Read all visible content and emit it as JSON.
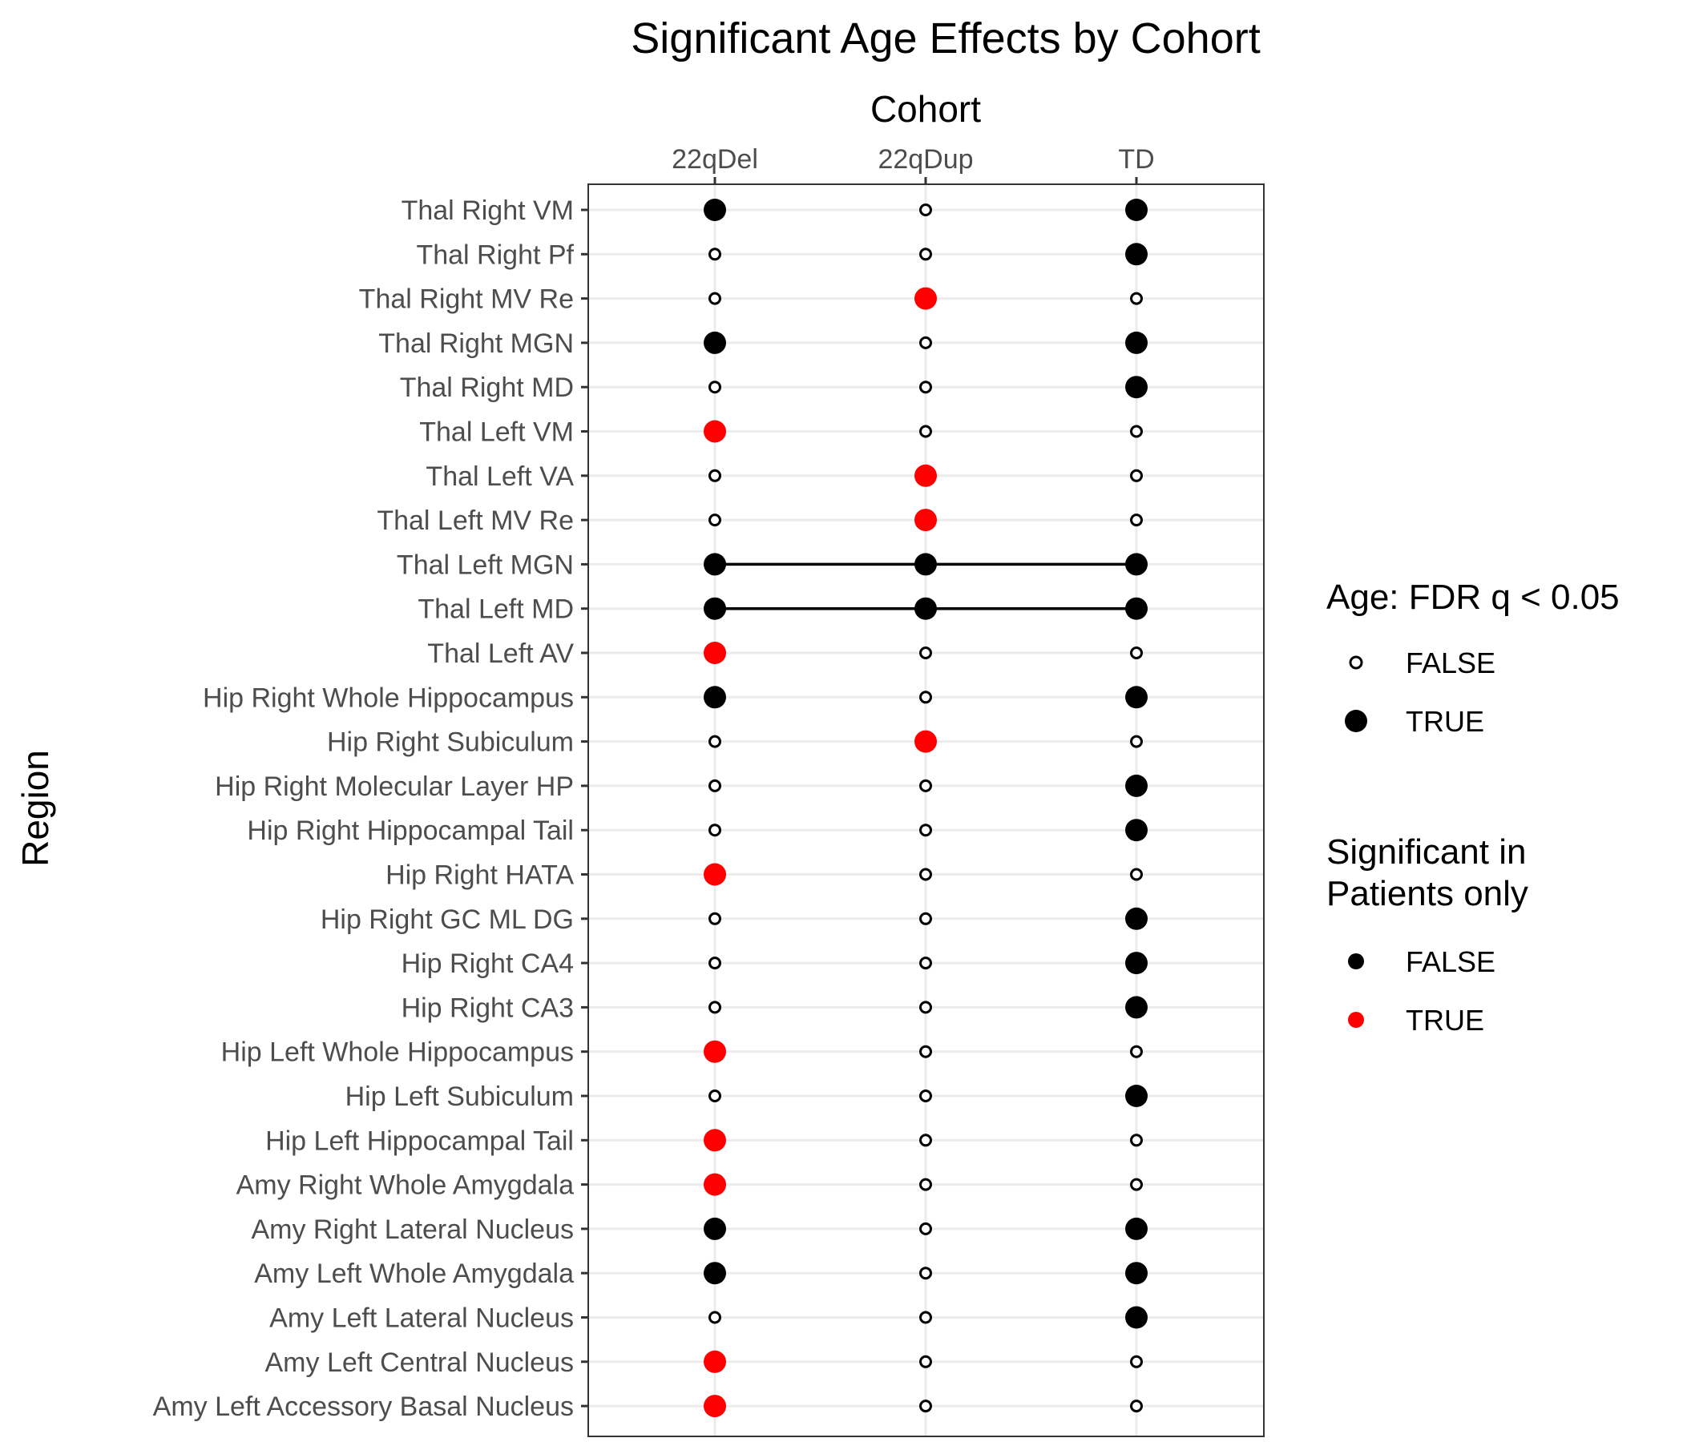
{
  "chart_data": {
    "type": "scatter",
    "title": "Significant Age Effects by Cohort",
    "xlabel": "Cohort",
    "ylabel": "Region",
    "x_axis_position": "top",
    "grid": true,
    "cohorts": [
      "22qDel",
      "22qDup",
      "TD"
    ],
    "regions": [
      "Thal Right VM",
      "Thal Right Pf",
      "Thal Right MV Re",
      "Thal Right MGN",
      "Thal Right MD",
      "Thal Left VM",
      "Thal Left VA",
      "Thal Left MV Re",
      "Thal Left MGN",
      "Thal Left MD",
      "Thal Left AV",
      "Hip Right Whole Hippocampus",
      "Hip Right Subiculum",
      "Hip Right Molecular Layer HP",
      "Hip Right Hippocampal Tail",
      "Hip Right HATA",
      "Hip Right GC ML DG",
      "Hip Right CA4",
      "Hip Right CA3",
      "Hip Left Whole Hippocampus",
      "Hip Left Subiculum",
      "Hip Left Hippocampal Tail",
      "Amy Right Whole Amygdala",
      "Amy Right Lateral Nucleus",
      "Amy Left Whole Amygdala",
      "Amy Left Lateral Nucleus",
      "Amy Left Central Nucleus",
      "Amy Left Accessory Basal Nucleus"
    ],
    "significant": [
      [
        true,
        false,
        true
      ],
      [
        false,
        false,
        true
      ],
      [
        false,
        true,
        false
      ],
      [
        true,
        false,
        true
      ],
      [
        false,
        false,
        true
      ],
      [
        true,
        false,
        false
      ],
      [
        false,
        true,
        false
      ],
      [
        false,
        true,
        false
      ],
      [
        true,
        true,
        true
      ],
      [
        true,
        true,
        true
      ],
      [
        true,
        false,
        false
      ],
      [
        true,
        false,
        true
      ],
      [
        false,
        true,
        false
      ],
      [
        false,
        false,
        true
      ],
      [
        false,
        false,
        true
      ],
      [
        true,
        false,
        false
      ],
      [
        false,
        false,
        true
      ],
      [
        false,
        false,
        true
      ],
      [
        false,
        false,
        true
      ],
      [
        true,
        false,
        false
      ],
      [
        false,
        false,
        true
      ],
      [
        true,
        false,
        false
      ],
      [
        true,
        false,
        false
      ],
      [
        true,
        false,
        true
      ],
      [
        true,
        false,
        true
      ],
      [
        false,
        false,
        true
      ],
      [
        true,
        false,
        false
      ],
      [
        true,
        false,
        false
      ]
    ],
    "patients_only": [
      [
        false,
        false,
        false
      ],
      [
        false,
        false,
        false
      ],
      [
        false,
        true,
        false
      ],
      [
        false,
        false,
        false
      ],
      [
        false,
        false,
        false
      ],
      [
        true,
        false,
        false
      ],
      [
        false,
        true,
        false
      ],
      [
        false,
        true,
        false
      ],
      [
        false,
        false,
        false
      ],
      [
        false,
        false,
        false
      ],
      [
        true,
        false,
        false
      ],
      [
        false,
        false,
        false
      ],
      [
        false,
        true,
        false
      ],
      [
        false,
        false,
        false
      ],
      [
        false,
        false,
        false
      ],
      [
        true,
        false,
        false
      ],
      [
        false,
        false,
        false
      ],
      [
        false,
        false,
        false
      ],
      [
        false,
        false,
        false
      ],
      [
        true,
        false,
        false
      ],
      [
        false,
        false,
        false
      ],
      [
        true,
        false,
        false
      ],
      [
        true,
        false,
        false
      ],
      [
        false,
        false,
        false
      ],
      [
        false,
        false,
        false
      ],
      [
        false,
        false,
        false
      ],
      [
        true,
        false,
        false
      ],
      [
        true,
        false,
        false
      ]
    ],
    "connected_regions": [
      "Thal Left MGN",
      "Thal Left MD"
    ],
    "legend": {
      "size_title": "Age: FDR q < 0.05",
      "size_items": [
        "FALSE",
        "TRUE"
      ],
      "color_title_lines": [
        "Significant in",
        "Patients only"
      ],
      "color_items": [
        "FALSE",
        "TRUE"
      ]
    },
    "colors": {
      "patients_only_true": "#ff0000",
      "patients_only_false": "#000000",
      "grid": "#ebebeb",
      "panel_border": "#333333"
    }
  }
}
